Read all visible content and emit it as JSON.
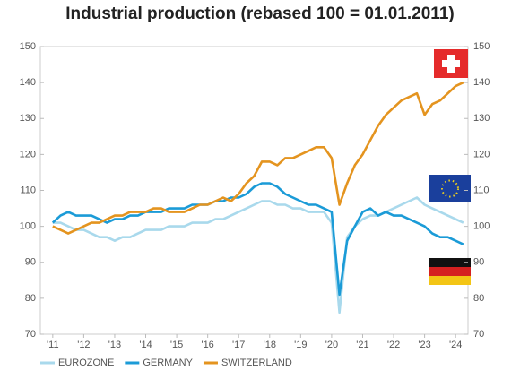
{
  "chart_data": {
    "type": "line",
    "title": "Industrial production (rebased 100 = 01.01.2011)",
    "x": [
      2011,
      2011.25,
      2011.5,
      2011.75,
      2012,
      2012.25,
      2012.5,
      2012.75,
      2013,
      2013.25,
      2013.5,
      2013.75,
      2014,
      2014.25,
      2014.5,
      2014.75,
      2015,
      2015.25,
      2015.5,
      2015.75,
      2016,
      2016.25,
      2016.5,
      2016.75,
      2017,
      2017.25,
      2017.5,
      2017.75,
      2018,
      2018.25,
      2018.5,
      2018.75,
      2019,
      2019.25,
      2019.5,
      2019.75,
      2020,
      2020.25,
      2020.5,
      2020.75,
      2021,
      2021.25,
      2021.5,
      2021.75,
      2022,
      2022.25,
      2022.5,
      2022.75,
      2023,
      2023.25,
      2023.5,
      2023.75,
      2024,
      2024.25
    ],
    "series": [
      {
        "name": "EUROZONE",
        "color": "#a9d9ec",
        "values": [
          101,
          101,
          100,
          99,
          99,
          98,
          97,
          97,
          96,
          97,
          97,
          98,
          99,
          99,
          99,
          100,
          100,
          100,
          101,
          101,
          101,
          102,
          102,
          103,
          104,
          105,
          106,
          107,
          107,
          106,
          106,
          105,
          105,
          104,
          104,
          104,
          101,
          76,
          97,
          100,
          102,
          103,
          103,
          104,
          105,
          106,
          107,
          108,
          106,
          105,
          104,
          103,
          102,
          101
        ]
      },
      {
        "name": "GERMANY",
        "color": "#1b9bd7",
        "values": [
          101,
          103,
          104,
          103,
          103,
          103,
          102,
          101,
          102,
          102,
          103,
          103,
          104,
          104,
          104,
          105,
          105,
          105,
          106,
          106,
          106,
          107,
          107,
          108,
          108,
          109,
          111,
          112,
          112,
          111,
          109,
          108,
          107,
          106,
          106,
          105,
          104,
          81,
          96,
          100,
          104,
          105,
          103,
          104,
          103,
          103,
          102,
          101,
          100,
          98,
          97,
          97,
          96,
          95
        ]
      },
      {
        "name": "SWITZERLAND",
        "color": "#e4941f",
        "values": [
          100,
          99,
          98,
          99,
          100,
          101,
          101,
          102,
          103,
          103,
          104,
          104,
          104,
          105,
          105,
          104,
          104,
          104,
          105,
          106,
          106,
          107,
          108,
          107,
          109,
          112,
          114,
          118,
          118,
          117,
          119,
          119,
          120,
          121,
          122,
          122,
          119,
          106,
          112,
          117,
          120,
          124,
          128,
          131,
          133,
          135,
          136,
          137,
          131,
          134,
          135,
          137,
          139,
          140
        ]
      }
    ],
    "xlim": [
      2010.6,
      2024.4
    ],
    "xticks": [
      {
        "value": 2011,
        "label": "'11"
      },
      {
        "value": 2012,
        "label": "'12"
      },
      {
        "value": 2013,
        "label": "'13"
      },
      {
        "value": 2014,
        "label": "'14"
      },
      {
        "value": 2015,
        "label": "'15"
      },
      {
        "value": 2016,
        "label": "'16"
      },
      {
        "value": 2017,
        "label": "'17"
      },
      {
        "value": 2018,
        "label": "'18"
      },
      {
        "value": 2019,
        "label": "'19"
      },
      {
        "value": 2020,
        "label": "'20"
      },
      {
        "value": 2021,
        "label": "'21"
      },
      {
        "value": 2022,
        "label": "'22"
      },
      {
        "value": 2023,
        "label": "'23"
      },
      {
        "value": 2024,
        "label": "'24"
      }
    ],
    "ylim": [
      70,
      150
    ],
    "yticks": [
      70,
      80,
      90,
      100,
      110,
      120,
      130,
      140,
      150
    ],
    "y2lim": [
      70,
      150
    ],
    "y2ticks": [
      70,
      80,
      90,
      100,
      110,
      120,
      130,
      140,
      150
    ],
    "grid": false
  }
}
